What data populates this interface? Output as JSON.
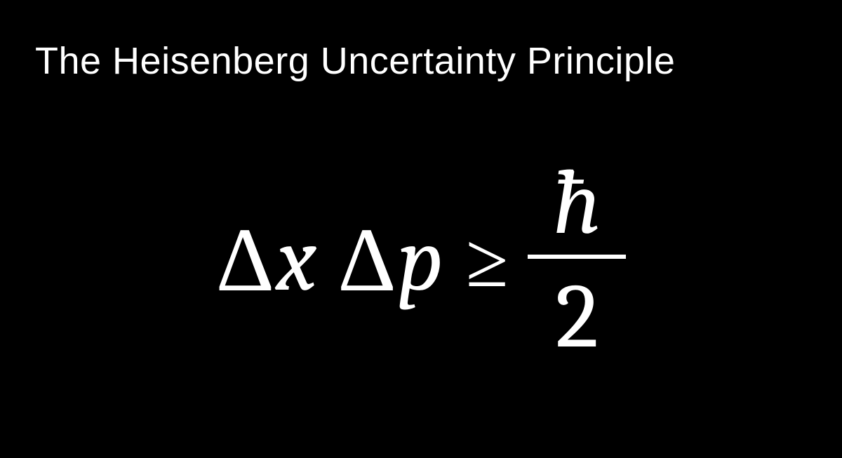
{
  "slide": {
    "title": "The Heisenberg Uncertainty Principle",
    "background_color": "#000000",
    "text_color": "#ffffff",
    "title_fontsize": 54,
    "title_fontweight": 300
  },
  "equation": {
    "type": "formula",
    "delta1": "Δ",
    "var1": "x",
    "delta2": "Δ",
    "var2": "p",
    "relation": "≥",
    "numerator": "ħ",
    "denominator": "2",
    "symbol_fontsize": 130,
    "fraction_line_width": 140,
    "fraction_line_thickness": 6,
    "font_family": "Cambria, Times New Roman, serif"
  }
}
